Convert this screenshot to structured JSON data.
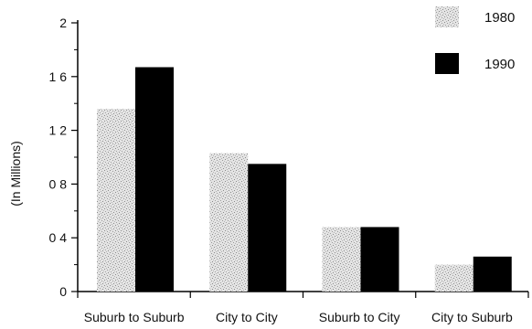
{
  "chart_data": {
    "type": "bar",
    "title": "",
    "xlabel": "",
    "ylabel": "(In Millions)",
    "ylim": [
      0,
      2
    ],
    "yticks": [
      0,
      0.4,
      0.8,
      1.2,
      1.6,
      2
    ],
    "ytick_labels": [
      "0",
      "0 4",
      "0 8",
      "1 2",
      "1 6",
      "2"
    ],
    "categories": [
      "Suburb to Suburb",
      "City to City",
      "Suburb to City",
      "City to Suburb"
    ],
    "series": [
      {
        "name": "1980",
        "values": [
          1.36,
          1.03,
          0.48,
          0.2
        ],
        "color": "#cfcfcf",
        "pattern": "stipple"
      },
      {
        "name": "1990",
        "values": [
          1.67,
          0.95,
          0.48,
          0.26
        ],
        "color": "#000000",
        "pattern": "solid"
      }
    ],
    "legend_position": "top-right",
    "grid": false
  }
}
